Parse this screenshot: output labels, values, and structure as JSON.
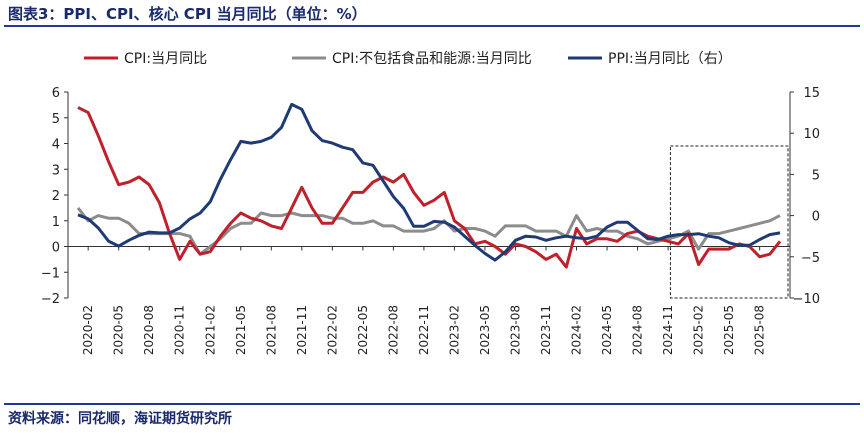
{
  "header": {
    "title": "图表3：PPI、CPI、核心 CPI 当月同比（单位：%）"
  },
  "footer": {
    "source": "资料来源：同花顺，海证期货研究所"
  },
  "colors": {
    "cpi": "#c0202a",
    "core_cpi": "#8c8c8c",
    "ppi": "#1f3a75",
    "frame": "#333333"
  },
  "chart_data": {
    "type": "line",
    "title": "",
    "x": [
      "2020-01",
      "2020-02",
      "2020-03",
      "2020-04",
      "2020-05",
      "2020-06",
      "2020-07",
      "2020-08",
      "2020-09",
      "2020-10",
      "2020-11",
      "2020-12",
      "2021-01",
      "2021-02",
      "2021-03",
      "2021-04",
      "2021-05",
      "2021-06",
      "2021-07",
      "2021-08",
      "2021-09",
      "2021-10",
      "2021-11",
      "2021-12",
      "2022-01",
      "2022-02",
      "2022-03",
      "2022-04",
      "2022-05",
      "2022-06",
      "2022-07",
      "2022-08",
      "2022-09",
      "2022-10",
      "2022-11",
      "2022-12",
      "2023-01",
      "2023-02",
      "2023-03",
      "2023-04",
      "2023-05",
      "2023-06",
      "2023-07",
      "2023-08",
      "2023-09",
      "2023-10",
      "2023-11",
      "2023-12",
      "2024-01",
      "2024-02",
      "2024-03",
      "2024-04",
      "2024-05",
      "2024-06",
      "2024-07",
      "2024-08",
      "2024-09",
      "2024-10",
      "2024-11",
      "2024-12",
      "2025-01",
      "2025-02",
      "2025-03",
      "2025-04",
      "2025-05",
      "2025-06",
      "2025-07",
      "2025-08",
      "2025-09",
      "2025-10"
    ],
    "x_tick_labels": [
      "2020-02",
      "2020-05",
      "2020-08",
      "2020-11",
      "2021-02",
      "2021-05",
      "2021-08",
      "2021-11",
      "2022-02",
      "2022-05",
      "2022-08",
      "2022-11",
      "2023-02",
      "2023-05",
      "2023-08",
      "2023-11",
      "2024-02",
      "2024-05",
      "2024-08",
      "2024-11",
      "2025-02",
      "2025-05",
      "2025-08"
    ],
    "ylim_left": [
      -2,
      6
    ],
    "yticks_left": [
      -2,
      -1,
      0,
      1,
      2,
      3,
      4,
      5,
      6
    ],
    "ytick_labels_left": [
      "−2",
      "−1",
      "0",
      "1",
      "2",
      "3",
      "4",
      "5",
      "6"
    ],
    "ylim_right": [
      -10,
      15
    ],
    "yticks_right": [
      -10,
      -5,
      0,
      5,
      10,
      15
    ],
    "ytick_labels_right": [
      "−10",
      "−5",
      "0",
      "5",
      "10",
      "15"
    ],
    "legend_position": "top",
    "highlight": {
      "label": "dashed box",
      "x_start": "2025-01",
      "x_end": "2025-10"
    },
    "series": [
      {
        "name": "CPI:当月同比",
        "axis": "left",
        "color": "#c0202a",
        "values": [
          5.4,
          5.2,
          4.3,
          3.3,
          2.4,
          2.5,
          2.7,
          2.4,
          1.7,
          0.5,
          -0.5,
          0.2,
          -0.3,
          -0.2,
          0.4,
          0.9,
          1.3,
          1.1,
          1.0,
          0.8,
          0.7,
          1.5,
          2.3,
          1.5,
          0.9,
          0.9,
          1.5,
          2.1,
          2.1,
          2.5,
          2.7,
          2.5,
          2.8,
          2.1,
          1.6,
          1.8,
          2.1,
          1.0,
          0.7,
          0.1,
          0.2,
          0.0,
          -0.3,
          0.1,
          0.0,
          -0.2,
          -0.5,
          -0.3,
          -0.8,
          0.7,
          0.1,
          0.3,
          0.3,
          0.2,
          0.5,
          0.6,
          0.4,
          0.3,
          0.2,
          0.1,
          0.5,
          -0.7,
          -0.1,
          -0.1,
          -0.1,
          0.1,
          0.0,
          -0.4,
          -0.3,
          0.2
        ]
      },
      {
        "name": "CPI:不包括食品和能源:当月同比",
        "axis": "left",
        "color": "#8c8c8c",
        "values": [
          1.5,
          1.0,
          1.2,
          1.1,
          1.1,
          0.9,
          0.5,
          0.5,
          0.5,
          0.5,
          0.5,
          0.4,
          -0.3,
          0.0,
          0.3,
          0.7,
          0.9,
          0.9,
          1.3,
          1.2,
          1.2,
          1.3,
          1.2,
          1.2,
          1.2,
          1.1,
          1.1,
          0.9,
          0.9,
          1.0,
          0.8,
          0.8,
          0.6,
          0.6,
          0.6,
          0.7,
          1.0,
          0.6,
          0.7,
          0.7,
          0.6,
          0.4,
          0.8,
          0.8,
          0.8,
          0.6,
          0.6,
          0.6,
          0.4,
          1.2,
          0.6,
          0.7,
          0.6,
          0.6,
          0.4,
          0.3,
          0.1,
          0.2,
          0.3,
          0.4,
          0.6,
          -0.1,
          0.5,
          0.5,
          0.6,
          0.7,
          0.8,
          0.9,
          1.0,
          1.2
        ]
      },
      {
        "name": "PPI:当月同比（右）",
        "axis": "right",
        "color": "#1f3a75",
        "values": [
          0.1,
          -0.4,
          -1.5,
          -3.1,
          -3.7,
          -3.0,
          -2.4,
          -2.0,
          -2.1,
          -2.1,
          -1.5,
          -0.4,
          0.3,
          1.7,
          4.4,
          6.8,
          9.0,
          8.8,
          9.0,
          9.5,
          10.7,
          13.5,
          12.9,
          10.3,
          9.1,
          8.8,
          8.3,
          8.0,
          6.4,
          6.1,
          4.2,
          2.3,
          0.9,
          -1.3,
          -1.3,
          -0.7,
          -0.8,
          -1.4,
          -2.5,
          -3.6,
          -4.6,
          -5.4,
          -4.4,
          -3.0,
          -2.5,
          -2.6,
          -3.0,
          -2.7,
          -2.5,
          -2.7,
          -2.8,
          -2.5,
          -1.4,
          -0.8,
          -0.8,
          -1.8,
          -2.8,
          -2.9,
          -2.5,
          -2.3,
          -2.3,
          -2.2,
          -2.5,
          -2.7,
          -3.3,
          -3.6,
          -3.6,
          -2.9,
          -2.3,
          -2.1
        ]
      }
    ]
  }
}
